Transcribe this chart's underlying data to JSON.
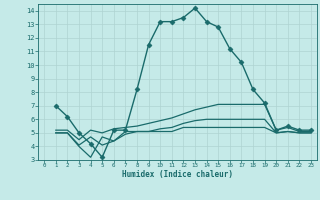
{
  "title": "",
  "xlabel": "Humidex (Indice chaleur)",
  "background_color": "#c5eae8",
  "grid_color": "#afd4d2",
  "line_color": "#1a6b6b",
  "xlim": [
    -0.5,
    23.5
  ],
  "ylim": [
    3,
    14.5
  ],
  "yticks": [
    3,
    4,
    5,
    6,
    7,
    8,
    9,
    10,
    11,
    12,
    13,
    14
  ],
  "xticks": [
    0,
    1,
    2,
    3,
    4,
    5,
    6,
    7,
    8,
    9,
    10,
    11,
    12,
    13,
    14,
    15,
    16,
    17,
    18,
    19,
    20,
    21,
    22,
    23
  ],
  "series": [
    {
      "x": [
        1,
        2,
        3,
        4,
        5,
        6,
        7,
        8,
        9,
        10,
        11,
        12,
        13,
        14,
        15,
        16,
        17,
        18,
        19,
        20,
        21,
        22,
        23
      ],
      "y": [
        7.0,
        6.2,
        5.0,
        4.2,
        3.2,
        5.2,
        5.2,
        8.2,
        11.5,
        13.2,
        13.2,
        13.5,
        14.2,
        13.2,
        12.8,
        11.2,
        10.2,
        8.2,
        7.2,
        5.2,
        5.5,
        5.2,
        5.2
      ],
      "marker": "D",
      "markersize": 2.5,
      "linewidth": 1.0
    },
    {
      "x": [
        1,
        2,
        3,
        4,
        5,
        6,
        7,
        8,
        9,
        10,
        11,
        12,
        13,
        14,
        15,
        16,
        17,
        18,
        19,
        20,
        21,
        22,
        23
      ],
      "y": [
        5.2,
        5.2,
        4.5,
        5.2,
        5.0,
        5.3,
        5.4,
        5.5,
        5.7,
        5.9,
        6.1,
        6.4,
        6.7,
        6.9,
        7.1,
        7.1,
        7.1,
        7.1,
        7.1,
        5.2,
        5.4,
        5.1,
        5.1
      ],
      "marker": null,
      "markersize": 0,
      "linewidth": 0.9
    },
    {
      "x": [
        1,
        2,
        3,
        4,
        5,
        6,
        7,
        8,
        9,
        10,
        11,
        12,
        13,
        14,
        15,
        16,
        17,
        18,
        19,
        20,
        21,
        22,
        23
      ],
      "y": [
        5.0,
        5.0,
        4.1,
        4.7,
        4.1,
        4.4,
        4.9,
        5.1,
        5.1,
        5.3,
        5.4,
        5.7,
        5.9,
        6.0,
        6.0,
        6.0,
        6.0,
        6.0,
        6.0,
        5.0,
        5.1,
        5.0,
        5.0
      ],
      "marker": null,
      "markersize": 0,
      "linewidth": 0.9
    },
    {
      "x": [
        1,
        2,
        3,
        4,
        5,
        6,
        7,
        8,
        9,
        10,
        11,
        12,
        13,
        14,
        15,
        16,
        17,
        18,
        19,
        20,
        21,
        22,
        23
      ],
      "y": [
        5.0,
        5.0,
        4.0,
        3.2,
        4.7,
        4.4,
        5.1,
        5.1,
        5.1,
        5.1,
        5.1,
        5.4,
        5.4,
        5.4,
        5.4,
        5.4,
        5.4,
        5.4,
        5.4,
        5.0,
        5.1,
        5.0,
        5.0
      ],
      "marker": null,
      "markersize": 0,
      "linewidth": 0.9
    }
  ]
}
